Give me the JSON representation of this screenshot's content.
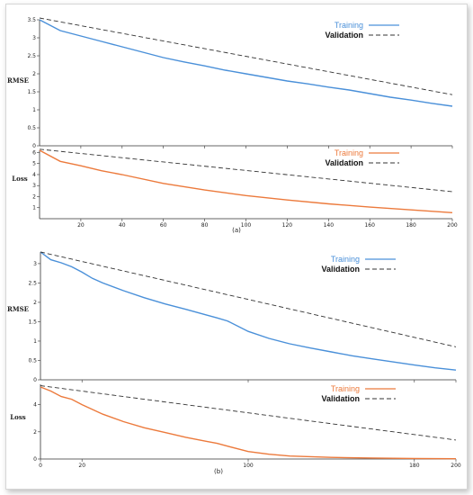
{
  "figure": {
    "captions": [
      "(a)",
      "(b)"
    ]
  },
  "colors": {
    "training_rmse": "#4a90d9",
    "training_loss": "#ec7a3c",
    "validation": "#333333"
  },
  "chart_data": [
    {
      "id": "a-rmse",
      "type": "line",
      "ylabel": "RMSE",
      "xlim": [
        0,
        200
      ],
      "ylim": [
        0,
        3.5
      ],
      "yticks": [
        0,
        0.5,
        1,
        1.5,
        2,
        2.5,
        3,
        3.5
      ],
      "ytick_labels": [
        "0",
        "0.5",
        "1",
        "1.5",
        "2",
        "2.5",
        "3",
        "3.5"
      ],
      "xticks": [
        20,
        40,
        60,
        80,
        100,
        120,
        140,
        160,
        180,
        200
      ],
      "xtick_labels": [],
      "legend": {
        "position": "top-right",
        "entries": [
          "Training",
          "Validation"
        ]
      },
      "series": [
        {
          "name": "Training",
          "style": "solid",
          "color": "#4a90d9",
          "x": [
            0,
            10,
            20,
            30,
            40,
            50,
            60,
            70,
            80,
            90,
            100,
            110,
            120,
            130,
            140,
            150,
            160,
            170,
            180,
            190,
            200
          ],
          "y": [
            3.5,
            3.2,
            3.05,
            2.9,
            2.75,
            2.6,
            2.45,
            2.33,
            2.22,
            2.1,
            2.0,
            1.9,
            1.8,
            1.72,
            1.63,
            1.55,
            1.45,
            1.35,
            1.27,
            1.18,
            1.1
          ]
        },
        {
          "name": "Validation",
          "style": "dashed",
          "color": "#333333",
          "x": [
            0,
            200
          ],
          "y": [
            3.55,
            1.42
          ]
        }
      ]
    },
    {
      "id": "a-loss",
      "type": "line",
      "ylabel": "Loss",
      "xlim": [
        0,
        200
      ],
      "ylim": [
        0,
        6.2
      ],
      "yticks": [
        1,
        2,
        3,
        4,
        5,
        6
      ],
      "ytick_labels": [
        "1",
        "2",
        "3",
        "4",
        "5",
        "6"
      ],
      "xticks": [
        20,
        40,
        60,
        80,
        100,
        120,
        140,
        160,
        180,
        200
      ],
      "xtick_labels": [
        "20",
        "40",
        "60",
        "80",
        "100",
        "120",
        "140",
        "160",
        "180",
        "200"
      ],
      "legend": {
        "position": "top-right",
        "entries": [
          "Training",
          "Validation"
        ]
      },
      "series": [
        {
          "name": "Training",
          "style": "solid",
          "color": "#ec7a3c",
          "x": [
            0,
            10,
            20,
            30,
            40,
            60,
            80,
            100,
            120,
            140,
            160,
            180,
            200
          ],
          "y": [
            6.2,
            5.2,
            4.8,
            4.35,
            4.0,
            3.2,
            2.6,
            2.1,
            1.7,
            1.35,
            1.05,
            0.8,
            0.55
          ]
        },
        {
          "name": "Validation",
          "style": "dashed",
          "color": "#333333",
          "x": [
            0,
            200
          ],
          "y": [
            6.3,
            2.45
          ]
        }
      ]
    },
    {
      "id": "b-rmse",
      "type": "line",
      "ylabel": "RMSE",
      "xlim": [
        0,
        200
      ],
      "ylim": [
        0,
        3.3
      ],
      "yticks": [
        0,
        0.5,
        1,
        1.5,
        2,
        2.5,
        3
      ],
      "ytick_labels": [
        "0",
        "0.5",
        "1",
        "1.5",
        "2",
        "2.5",
        "3"
      ],
      "xticks": [
        20,
        100,
        180,
        200
      ],
      "xtick_labels": [],
      "legend": {
        "position": "top-right",
        "entries": [
          "Training",
          "Validation"
        ]
      },
      "series": [
        {
          "name": "Training",
          "style": "solid",
          "color": "#4a90d9",
          "x": [
            0,
            5,
            10,
            15,
            20,
            25,
            30,
            40,
            50,
            60,
            70,
            80,
            85,
            90,
            100,
            110,
            120,
            130,
            140,
            150,
            160,
            170,
            180,
            190,
            200
          ],
          "y": [
            3.3,
            3.1,
            3.02,
            2.92,
            2.78,
            2.62,
            2.5,
            2.3,
            2.12,
            1.96,
            1.82,
            1.67,
            1.6,
            1.52,
            1.25,
            1.07,
            0.93,
            0.82,
            0.72,
            0.62,
            0.54,
            0.46,
            0.38,
            0.31,
            0.25
          ]
        },
        {
          "name": "Validation",
          "style": "dashed",
          "color": "#333333",
          "x": [
            0,
            200
          ],
          "y": [
            3.3,
            0.85
          ]
        }
      ]
    },
    {
      "id": "b-loss",
      "type": "line",
      "ylabel": "Loss",
      "xlim": [
        0,
        200
      ],
      "ylim": [
        0,
        5.5
      ],
      "yticks": [
        0,
        2,
        4
      ],
      "ytick_labels": [
        "0",
        "2",
        "4"
      ],
      "xticks": [
        0,
        20,
        100,
        180,
        200
      ],
      "xtick_labels": [
        "0",
        "20",
        "100",
        "180",
        "200"
      ],
      "legend": {
        "position": "top-right",
        "entries": [
          "Training",
          "Validation"
        ]
      },
      "series": [
        {
          "name": "Training",
          "style": "solid",
          "color": "#ec7a3c",
          "x": [
            0,
            5,
            10,
            15,
            20,
            30,
            40,
            50,
            60,
            70,
            80,
            85,
            90,
            100,
            110,
            120,
            140,
            160,
            180,
            200
          ],
          "y": [
            5.3,
            5.0,
            4.6,
            4.4,
            4.0,
            3.3,
            2.75,
            2.3,
            1.95,
            1.6,
            1.3,
            1.15,
            0.95,
            0.55,
            0.35,
            0.22,
            0.12,
            0.07,
            0.04,
            0.02
          ]
        },
        {
          "name": "Validation",
          "style": "dashed",
          "color": "#333333",
          "x": [
            0,
            200
          ],
          "y": [
            5.4,
            1.4
          ]
        }
      ]
    }
  ]
}
